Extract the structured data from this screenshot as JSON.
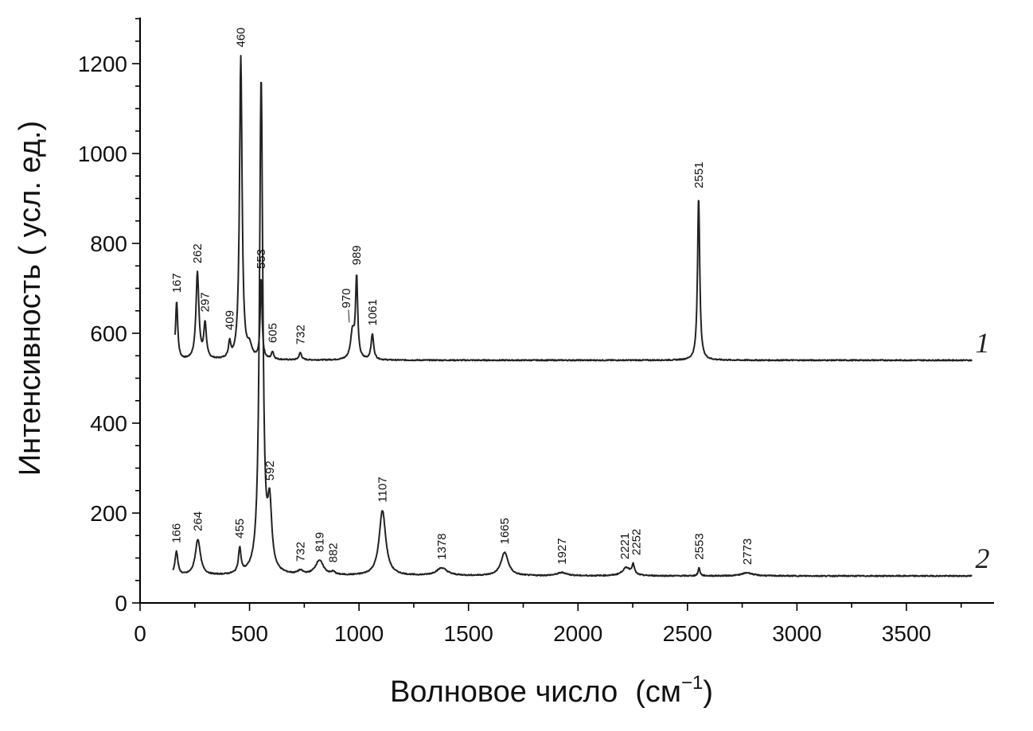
{
  "chart_data": {
    "type": "line",
    "xlabel_main": "Волновое число",
    "xlabel_unit": "(см",
    "xlabel_sup": "−1",
    "xlabel_close": ")",
    "ylabel": "Интенсивность  ( усл. ед.)",
    "xlim": [
      0,
      3900
    ],
    "ylim": [
      0,
      1200
    ],
    "x_ticks": [
      0,
      500,
      1000,
      1500,
      2000,
      2500,
      3000,
      3500
    ],
    "y_ticks": [
      0,
      200,
      400,
      600,
      800,
      1000,
      1200
    ],
    "grid": false,
    "series": [
      {
        "tag": "1",
        "x_range": [
          160,
          3800
        ],
        "baseline": 540,
        "peaks": [
          {
            "x": 167,
            "y": 670,
            "w": 6,
            "label": "167"
          },
          {
            "x": 262,
            "y": 733,
            "w": 8,
            "label": "262"
          },
          {
            "x": 297,
            "y": 618,
            "w": 7,
            "label": "297"
          },
          {
            "x": 409,
            "y": 575,
            "w": 6,
            "label": "409"
          },
          {
            "x": 460,
            "y": 1215,
            "w": 7,
            "label": "460"
          },
          {
            "x": 500,
            "y": 565,
            "w": 12,
            "label": ""
          },
          {
            "x": 553,
            "y": 720,
            "w": 5,
            "label": "553"
          },
          {
            "x": 605,
            "y": 557,
            "w": 6,
            "label": "605"
          },
          {
            "x": 732,
            "y": 556,
            "w": 7,
            "label": "732"
          },
          {
            "x": 970,
            "y": 600,
            "w": 10,
            "label": "970"
          },
          {
            "x": 989,
            "y": 720,
            "w": 6,
            "label": "989"
          },
          {
            "x": 1061,
            "y": 597,
            "w": 7,
            "label": "1061"
          },
          {
            "x": 2551,
            "y": 905,
            "w": 6,
            "label": "2551"
          }
        ]
      },
      {
        "tag": "2",
        "x_range": [
          150,
          3800
        ],
        "baseline": 60,
        "peaks": [
          {
            "x": 166,
            "y": 113,
            "w": 8,
            "label": "166"
          },
          {
            "x": 264,
            "y": 140,
            "w": 14,
            "label": "264"
          },
          {
            "x": 455,
            "y": 115,
            "w": 7,
            "label": "455"
          },
          {
            "x": 553,
            "y": 1160,
            "w": 9,
            "label": ""
          },
          {
            "x": 592,
            "y": 198,
            "w": 11,
            "label": "592"
          },
          {
            "x": 732,
            "y": 68,
            "w": 15,
            "label": "732"
          },
          {
            "x": 819,
            "y": 93,
            "w": 22,
            "label": "819"
          },
          {
            "x": 882,
            "y": 66,
            "w": 10,
            "label": "882"
          },
          {
            "x": 1107,
            "y": 205,
            "w": 18,
            "label": "1107"
          },
          {
            "x": 1378,
            "y": 77,
            "w": 30,
            "label": "1378"
          },
          {
            "x": 1665,
            "y": 112,
            "w": 20,
            "label": "1665"
          },
          {
            "x": 1927,
            "y": 67,
            "w": 28,
            "label": "1927"
          },
          {
            "x": 2221,
            "y": 78,
            "w": 22,
            "label": "2221"
          },
          {
            "x": 2252,
            "y": 82,
            "w": 7,
            "label": "2252"
          },
          {
            "x": 2553,
            "y": 78,
            "w": 5,
            "label": "2553"
          },
          {
            "x": 2773,
            "y": 67,
            "w": 30,
            "label": "2773"
          }
        ]
      }
    ]
  }
}
